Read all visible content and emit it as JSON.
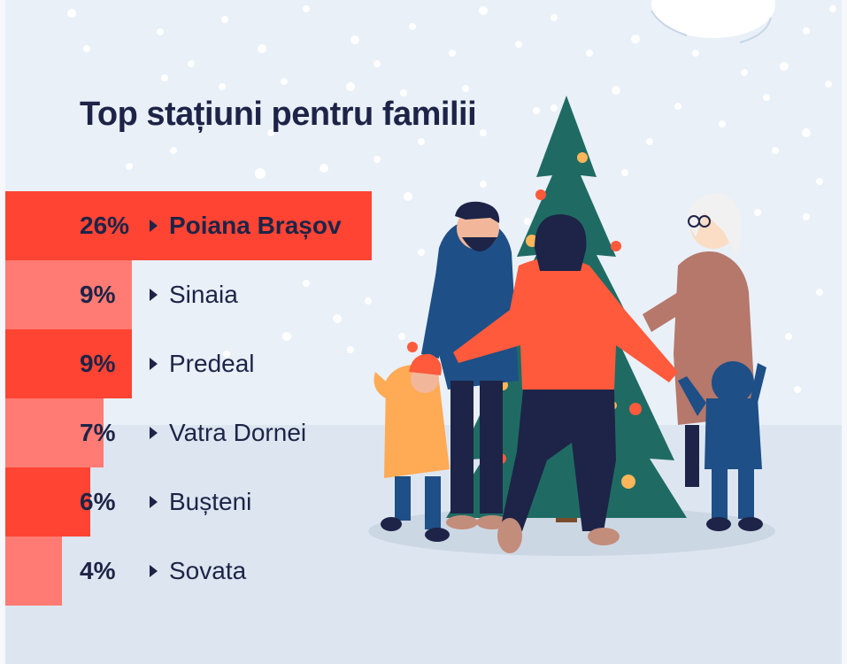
{
  "title": "Top stațiuni pentru familii",
  "colors": {
    "bar_primary": "#ff4433",
    "bar_secondary": "#ff7b73",
    "text": "#1d2447"
  },
  "chart_data": {
    "type": "bar",
    "orientation": "horizontal",
    "title": "Top stațiuni pentru familii",
    "unit": "%",
    "categories": [
      "Poiana Brașov",
      "Sinaia",
      "Predeal",
      "Vatra Dornei",
      "Bușteni",
      "Sovata"
    ],
    "values": [
      26,
      9,
      9,
      7,
      6,
      4
    ],
    "labels": [
      "26%",
      "9%",
      "9%",
      "7%",
      "6%",
      "4%"
    ],
    "grid": false,
    "legend": "none"
  }
}
